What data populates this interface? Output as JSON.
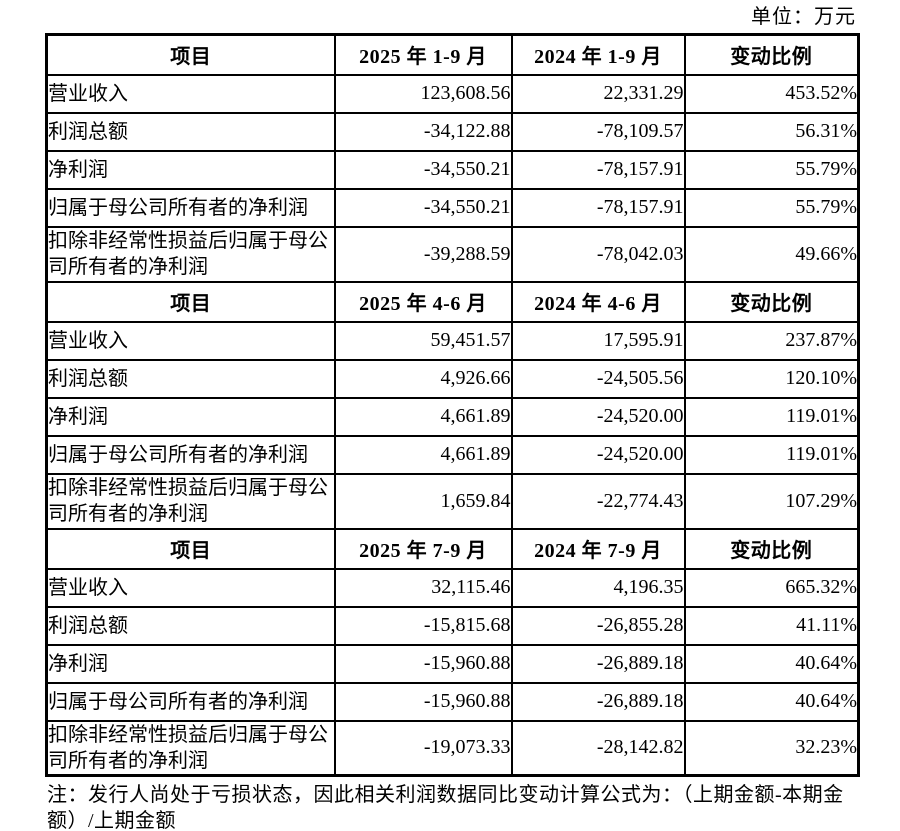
{
  "unit_label": "单位：万元",
  "table": {
    "sections": [
      {
        "header": [
          "项目",
          "2025 年 1-9 月",
          "2024 年 1-9 月",
          "变动比例"
        ],
        "rows": [
          [
            "营业收入",
            "123,608.56",
            "22,331.29",
            "453.52%"
          ],
          [
            "利润总额",
            "-34,122.88",
            "-78,109.57",
            "56.31%"
          ],
          [
            "净利润",
            "-34,550.21",
            "-78,157.91",
            "55.79%"
          ],
          [
            "归属于母公司所有者的净利润",
            "-34,550.21",
            "-78,157.91",
            "55.79%"
          ],
          [
            "扣除非经常性损益后归属于母公司所有者的净利润",
            "-39,288.59",
            "-78,042.03",
            "49.66%"
          ]
        ]
      },
      {
        "header": [
          "项目",
          "2025 年 4-6 月",
          "2024 年 4-6 月",
          "变动比例"
        ],
        "rows": [
          [
            "营业收入",
            "59,451.57",
            "17,595.91",
            "237.87%"
          ],
          [
            "利润总额",
            "4,926.66",
            "-24,505.56",
            "120.10%"
          ],
          [
            "净利润",
            "4,661.89",
            "-24,520.00",
            "119.01%"
          ],
          [
            "归属于母公司所有者的净利润",
            "4,661.89",
            "-24,520.00",
            "119.01%"
          ],
          [
            "扣除非经常性损益后归属于母公司所有者的净利润",
            "1,659.84",
            "-22,774.43",
            "107.29%"
          ]
        ]
      },
      {
        "header": [
          "项目",
          "2025 年 7-9 月",
          "2024 年 7-9 月",
          "变动比例"
        ],
        "rows": [
          [
            "营业收入",
            "32,115.46",
            "4,196.35",
            "665.32%"
          ],
          [
            "利润总额",
            "-15,815.68",
            "-26,855.28",
            "41.11%"
          ],
          [
            "净利润",
            "-15,960.88",
            "-26,889.18",
            "40.64%"
          ],
          [
            "归属于母公司所有者的净利润",
            "-15,960.88",
            "-26,889.18",
            "40.64%"
          ],
          [
            "扣除非经常性损益后归属于母公司所有者的净利润",
            "-19,073.33",
            "-28,142.82",
            "32.23%"
          ]
        ]
      }
    ]
  },
  "note": "注：发行人尚处于亏损状态，因此相关利润数据同比变动计算公式为：（上期金额-本期金额）/上期金额"
}
